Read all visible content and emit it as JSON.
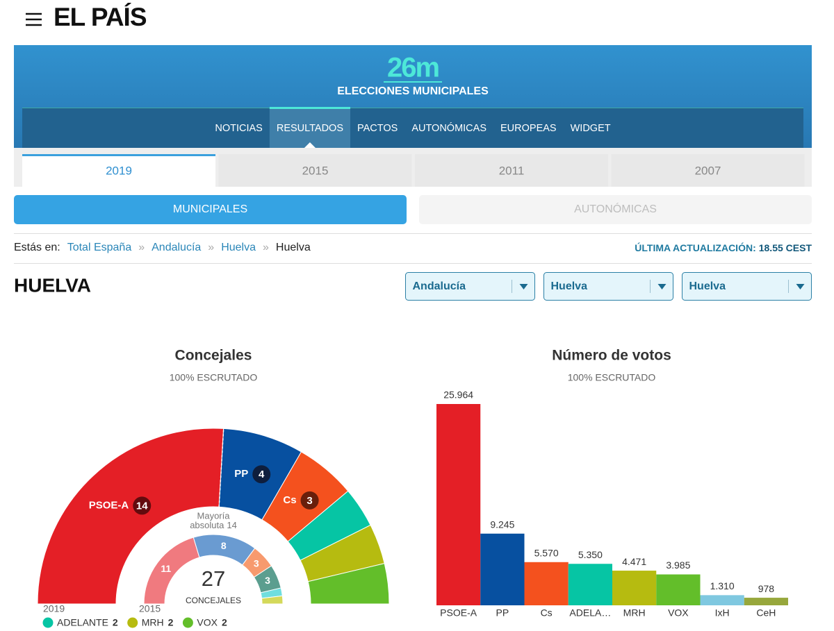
{
  "header": {
    "logo": "EL PAÍS"
  },
  "banner": {
    "logo": "26m",
    "title": "ELECCIONES MUNICIPALES"
  },
  "nav": {
    "items": [
      "NOTICIAS",
      "RESULTADOS",
      "PACTOS",
      "AUTONÓMICAS",
      "EUROPEAS",
      "WIDGET"
    ],
    "active": 1
  },
  "year_tabs": {
    "items": [
      "2019",
      "2015",
      "2011",
      "2007"
    ],
    "active": 0
  },
  "type_tabs": {
    "items": [
      "MUNICIPALES",
      "AUTONÓMICAS"
    ],
    "active": 0
  },
  "breadcrumb": {
    "label": "Estás en:",
    "separator": "»",
    "items": [
      "Total España",
      "Andalucía",
      "Huelva",
      "Huelva"
    ]
  },
  "update": {
    "label": "ÚLTIMA ACTUALIZACIÓN:",
    "time": "18.55 CEST"
  },
  "place": {
    "title": "HUELVA",
    "selects": [
      "Andalucía",
      "Huelva",
      "Huelva"
    ]
  },
  "chart_data": [
    {
      "type": "hemicycle",
      "title": "Concejales",
      "subtitle": "100% ESCRUTADO",
      "total": 27,
      "total_label": "CONCEJALES",
      "majority": 14,
      "majority_label": [
        "Mayoría",
        "absoluta"
      ],
      "categories": [
        "PSOE-A",
        "PP",
        "Cs",
        "ADELANTE",
        "MRH",
        "VOX"
      ],
      "series": [
        {
          "name": "2019",
          "colors": [
            "#e41f26",
            "#0750a0",
            "#f4511e",
            "#06c5a4",
            "#b6bb10",
            "#63be2a"
          ],
          "values": [
            14,
            4,
            3,
            2,
            2,
            2
          ]
        },
        {
          "name": "2015",
          "colors": [
            "#f07a7f",
            "#6a9bd1",
            "#f79a6e",
            "#5b9e8f",
            "#6fdede",
            "#d4d95a"
          ],
          "values": [
            11,
            8,
            3,
            3,
            1,
            1
          ]
        }
      ]
    },
    {
      "type": "bar",
      "title": "Número de votos",
      "subtitle": "100% ESCRUTADO",
      "categories": [
        "PSOE-A",
        "PP",
        "Cs",
        "ADELA…",
        "MRH",
        "VOX",
        "IxH",
        "CeH"
      ],
      "values": [
        25964,
        9245,
        5570,
        5350,
        4471,
        3985,
        1310,
        978
      ],
      "value_labels": [
        "25.964",
        "9.245",
        "5.570",
        "5.350",
        "4.471",
        "3.985",
        "1.310",
        "978"
      ],
      "colors": [
        "#e41f26",
        "#0750a0",
        "#f4511e",
        "#06c5a4",
        "#b6bb10",
        "#63be2a",
        "#7fc8e0",
        "#97a73c"
      ]
    }
  ]
}
